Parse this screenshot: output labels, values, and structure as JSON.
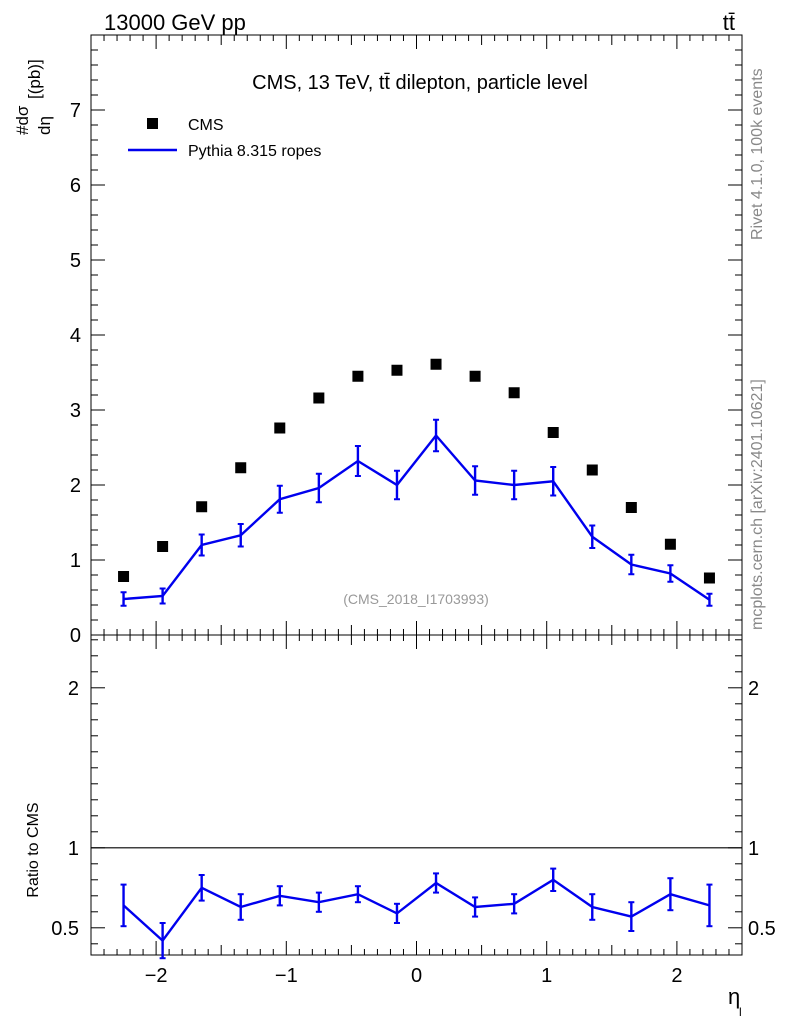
{
  "header": {
    "process_label": "13000 GeV pp",
    "final_state_label": "tt̄",
    "side_label_top": "Rivet 4.1.0,  100k events",
    "side_label_bottom": "mcplots.cern.ch [arXiv:2401.10621]"
  },
  "chart_data": [
    {
      "type": "scatter",
      "panel": "main",
      "title": "CMS, 13 TeV, tt̄ dilepton, particle level",
      "watermark": "(CMS_2018_I1703993)",
      "ylabel": "#dσ/dη_l [(pb)]",
      "xlabel": "",
      "xlim": [
        -2.5,
        2.5
      ],
      "ylim": [
        0,
        8
      ],
      "y_ticks": [
        0,
        1,
        2,
        3,
        4,
        5,
        6,
        7
      ],
      "y_tick_labels": [
        "0",
        "1",
        "2",
        "3",
        "4",
        "5",
        "6",
        "7"
      ],
      "legend_position": "top-left",
      "x": [
        -2.25,
        -1.95,
        -1.65,
        -1.35,
        -1.05,
        -0.75,
        -0.45,
        -0.15,
        0.15,
        0.45,
        0.75,
        1.05,
        1.35,
        1.65,
        1.95,
        2.25
      ],
      "series": [
        {
          "name": "CMS",
          "style": "markers",
          "color": "#000000",
          "values": [
            0.78,
            1.18,
            1.71,
            2.23,
            2.76,
            3.16,
            3.45,
            3.53,
            3.61,
            3.45,
            3.23,
            2.7,
            2.2,
            1.7,
            1.21,
            0.76
          ]
        },
        {
          "name": "Pythia 8.315 ropes",
          "style": "line",
          "color": "#0000ee",
          "values": [
            0.48,
            0.52,
            1.2,
            1.33,
            1.81,
            1.96,
            2.32,
            2.0,
            2.66,
            2.06,
            2.0,
            2.05,
            1.31,
            0.94,
            0.82,
            0.47
          ],
          "errors": [
            0.09,
            0.1,
            0.14,
            0.15,
            0.18,
            0.19,
            0.2,
            0.19,
            0.21,
            0.19,
            0.19,
            0.19,
            0.15,
            0.13,
            0.11,
            0.08
          ]
        }
      ]
    },
    {
      "type": "line",
      "panel": "ratio",
      "xlabel": "η_l",
      "ylabel": "Ratio to CMS",
      "xlim": [
        -2.5,
        2.5
      ],
      "ylim": [
        0.33,
        2.33
      ],
      "x_ticks": [
        -2,
        -1,
        0,
        1,
        2
      ],
      "x_tick_labels": [
        "−2",
        "−1",
        "0",
        "1",
        "2"
      ],
      "y_ticks": [
        0.5,
        1,
        2
      ],
      "y_tick_labels": [
        "0.5",
        "1",
        "2"
      ],
      "reference_line": 1,
      "x": [
        -2.25,
        -1.95,
        -1.65,
        -1.35,
        -1.05,
        -0.75,
        -0.45,
        -0.15,
        0.15,
        0.45,
        0.75,
        1.05,
        1.35,
        1.65,
        1.95,
        2.25
      ],
      "series": [
        {
          "name": "Pythia 8.315 ropes / CMS",
          "color": "#0000ee",
          "values": [
            0.64,
            0.42,
            0.75,
            0.63,
            0.7,
            0.66,
            0.71,
            0.59,
            0.78,
            0.63,
            0.65,
            0.8,
            0.63,
            0.57,
            0.71,
            0.64
          ],
          "errors": [
            0.13,
            0.11,
            0.08,
            0.08,
            0.06,
            0.06,
            0.05,
            0.06,
            0.06,
            0.06,
            0.06,
            0.07,
            0.08,
            0.09,
            0.1,
            0.13
          ]
        }
      ]
    }
  ]
}
